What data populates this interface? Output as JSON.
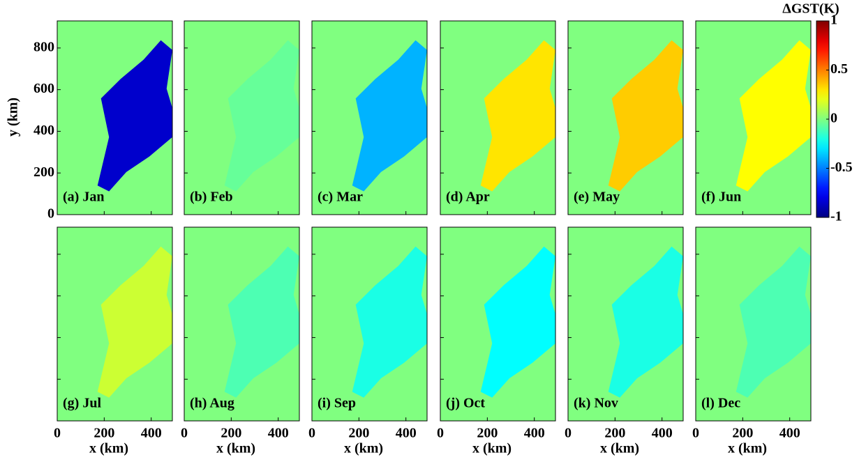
{
  "chart_data": {
    "type": "heatmap-panels",
    "colorbar_title": "ΔGST(K)",
    "x_label": "x (km)",
    "y_label": "y (km)",
    "xlim": [
      0,
      490
    ],
    "xticks": [
      0,
      200,
      400
    ],
    "ylim": [
      0,
      930
    ],
    "yticks": [
      0,
      200,
      400,
      600,
      800
    ],
    "clim": [
      -1,
      1
    ],
    "cticks": [
      -1,
      -0.5,
      0,
      0.5,
      1
    ],
    "colormap": "jet",
    "panels": [
      {
        "label": "(a) Jan",
        "lake_value": -0.85
      },
      {
        "label": "(b) Feb",
        "lake_value": -0.05
      },
      {
        "label": "(c) Mar",
        "lake_value": -0.4
      },
      {
        "label": "(d) Apr",
        "lake_value": 0.3
      },
      {
        "label": "(e) May",
        "lake_value": 0.35
      },
      {
        "label": "(f) Jun",
        "lake_value": 0.25
      },
      {
        "label": "(g) Jul",
        "lake_value": 0.15
      },
      {
        "label": "(h) Aug",
        "lake_value": -0.1
      },
      {
        "label": "(i) Sep",
        "lake_value": -0.2
      },
      {
        "label": "(j) Oct",
        "lake_value": -0.25
      },
      {
        "label": "(k) Nov",
        "lake_value": -0.2
      },
      {
        "label": "(l) Dec",
        "lake_value": -0.1
      }
    ]
  }
}
